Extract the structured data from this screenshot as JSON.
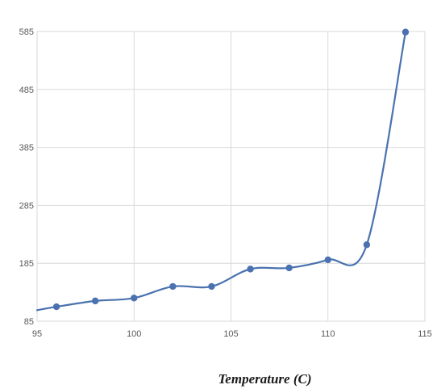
{
  "chart_data": {
    "type": "line",
    "title": "",
    "xlabel": "Temperature (C)",
    "ylabel": "",
    "xlim": [
      95,
      115
    ],
    "ylim": [
      85,
      585
    ],
    "x_ticks": [
      95,
      100,
      105,
      110,
      115
    ],
    "y_ticks": [
      85,
      185,
      285,
      385,
      485,
      585
    ],
    "grid": true,
    "legend": "none",
    "smooth": true,
    "series": [
      {
        "color": "#4a72b0",
        "x": [
          95,
          96,
          98,
          100,
          102,
          104,
          106,
          108,
          110,
          112,
          114
        ],
        "y": [
          104,
          110,
          120,
          125,
          145,
          145,
          175,
          177,
          191,
          217,
          584
        ],
        "markers_from_index": 1
      }
    ]
  }
}
